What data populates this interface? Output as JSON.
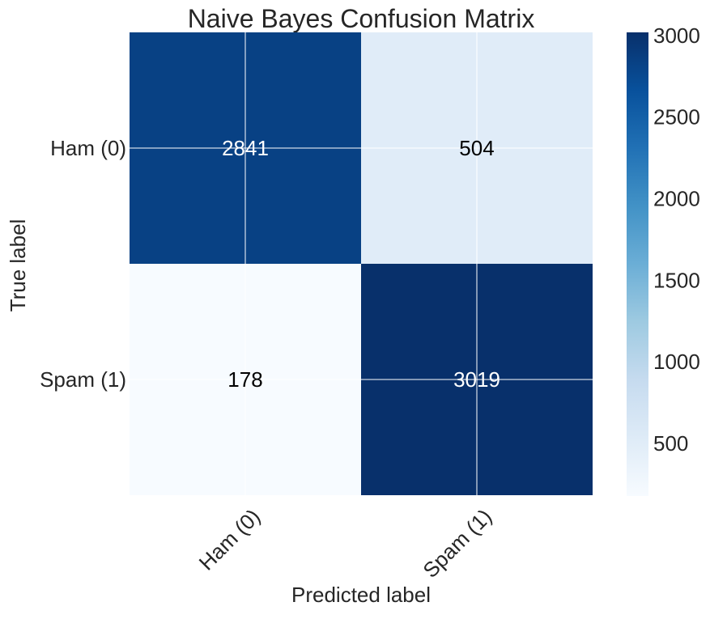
{
  "chart_data": {
    "type": "heatmap",
    "title": "Naive Bayes Confusion Matrix",
    "xlabel": "Predicted label",
    "ylabel": "True label",
    "x_categories": [
      "Ham (0)",
      "Spam (1)"
    ],
    "y_categories": [
      "Ham (0)",
      "Spam (1)"
    ],
    "values": [
      [
        2841,
        504
      ],
      [
        178,
        3019
      ]
    ],
    "colormap": "Blues",
    "colorbar": {
      "range": [
        178,
        3019
      ],
      "ticks": [
        500,
        1000,
        1500,
        2000,
        2500,
        3000
      ],
      "tick_labels": [
        "500",
        "1000",
        "1500",
        "2000",
        "2500",
        "3000"
      ]
    },
    "grid": true
  }
}
